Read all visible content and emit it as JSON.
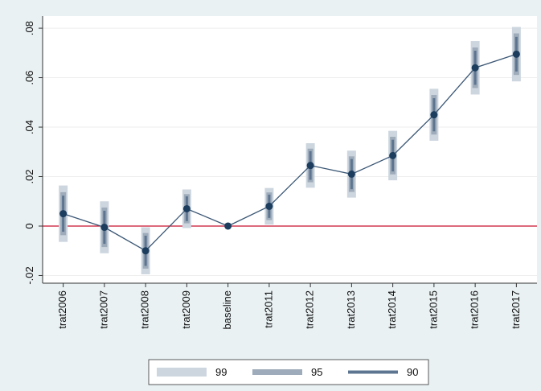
{
  "chart_data": {
    "type": "coefplot",
    "categories": [
      "trat2006",
      "trat2007",
      "trat2008",
      "trat2009",
      "baseline",
      "trat2011",
      "trat2012",
      "trat2013",
      "trat2014",
      "trat2015",
      "trat2016",
      "trat2017"
    ],
    "values": [
      0.005,
      -0.0005,
      -0.01,
      0.007,
      0,
      0.008,
      0.0245,
      0.021,
      0.0285,
      0.045,
      0.064,
      0.0695
    ],
    "color": "#1c3d5e",
    "intervals": [
      {
        "name": "99",
        "color": "#cdd6df",
        "lower": [
          -0.0064,
          -0.011,
          -0.0195,
          -0.0008,
          null,
          0.0006,
          0.0155,
          0.0115,
          0.0185,
          0.0345,
          0.0532,
          0.0585
        ],
        "upper": [
          0.0164,
          0.01,
          -0.0005,
          0.0148,
          null,
          0.0154,
          0.0335,
          0.0305,
          0.0385,
          0.0555,
          0.0748,
          0.0805
        ]
      },
      {
        "name": "95",
        "color": "#9eabba",
        "lower": [
          -0.0037,
          -0.0085,
          -0.0172,
          0.0011,
          null,
          0.0024,
          0.0177,
          0.0138,
          0.0209,
          0.037,
          0.0558,
          0.0611
        ],
        "upper": [
          0.0137,
          0.0075,
          -0.0028,
          0.0129,
          null,
          0.0136,
          0.0313,
          0.0282,
          0.0361,
          0.053,
          0.0722,
          0.0779
        ]
      },
      {
        "name": "90",
        "color": "#5d7590",
        "lower": [
          -0.0023,
          -0.0072,
          -0.0161,
          0.002,
          null,
          0.0033,
          0.0187,
          0.0149,
          0.0221,
          0.0383,
          0.0571,
          0.0625
        ],
        "upper": [
          0.0123,
          0.0062,
          -0.0039,
          0.012,
          null,
          0.0127,
          0.0303,
          0.0271,
          0.0349,
          0.0517,
          0.0709,
          0.0765
        ]
      }
    ],
    "refline": {
      "value": 0,
      "color": "#c8102e"
    },
    "ylim": [
      -0.0231,
      0.0849
    ],
    "yticks": [
      {
        "value": -0.02,
        "label": "-.02"
      },
      0,
      {
        "value": 0.02,
        "label": ".02"
      },
      {
        "value": 0.04,
        "label": ".04"
      },
      {
        "value": 0.06,
        "label": ".06"
      },
      {
        "value": 0.08,
        "label": ".08"
      }
    ],
    "grid": true
  }
}
